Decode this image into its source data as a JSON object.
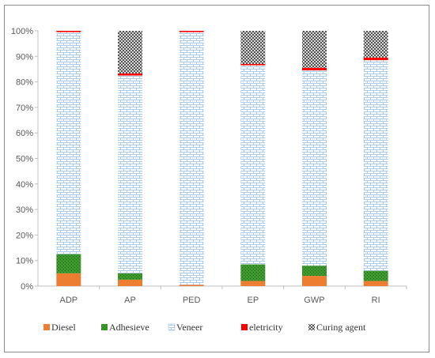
{
  "chart_data": {
    "type": "bar",
    "stacked": true,
    "percent_stacked": true,
    "categories": [
      "ADP",
      "AP",
      "PED",
      "EP",
      "GWP",
      "RI"
    ],
    "y_ticks": [
      "0%",
      "10%",
      "20%",
      "30%",
      "40%",
      "50%",
      "60%",
      "70%",
      "80%",
      "90%",
      "100%"
    ],
    "ylim": [
      0,
      100
    ],
    "grid": false,
    "legend_position": "bottom",
    "series": [
      {
        "name": "Diesel",
        "color": "#ed7d31",
        "pattern": "solid",
        "values": [
          5,
          2.5,
          0.5,
          2,
          4,
          2
        ]
      },
      {
        "name": "Adhesieve",
        "color": "#3e9a2e",
        "pattern": "dots",
        "values": [
          7.5,
          2.5,
          0,
          6.5,
          4,
          4
        ]
      },
      {
        "name": "Veneer",
        "color": "#9dc3e6",
        "pattern": "bricks",
        "values": [
          87,
          77.5,
          99,
          78,
          76.5,
          82.5
        ]
      },
      {
        "name": "eletricity",
        "color": "#ff0000",
        "pattern": "solid",
        "values": [
          0.5,
          0.8,
          0.5,
          0.5,
          1,
          1
        ]
      },
      {
        "name": "Curing agent",
        "color": "#404040",
        "pattern": "crosshatch",
        "values": [
          0,
          16.7,
          0,
          13,
          14.5,
          10.5
        ]
      }
    ]
  }
}
